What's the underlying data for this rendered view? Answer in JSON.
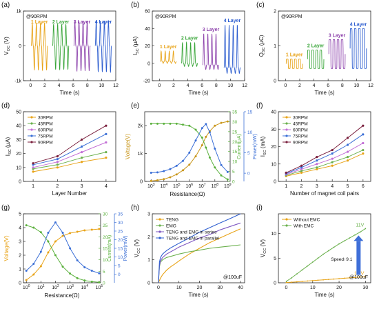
{
  "figure": {
    "panels": [
      {
        "letter": "(a)"
      },
      {
        "letter": "(b)"
      },
      {
        "letter": "(c)"
      },
      {
        "letter": "(d)"
      },
      {
        "letter": "(e)"
      },
      {
        "letter": "(f)"
      },
      {
        "letter": "(g)"
      },
      {
        "letter": "(h)"
      },
      {
        "letter": "(i)"
      }
    ]
  },
  "chart_data": [
    {
      "id": "a",
      "type": "line",
      "annotation": "@90RPM",
      "xlabel": "Time (s)",
      "ylabel": "V_OC (V)",
      "xlim": [
        -1,
        12
      ],
      "ylim": [
        -1000,
        1000
      ],
      "x_ticks": [
        0,
        2,
        4,
        6,
        8,
        10,
        12
      ],
      "y_ticks": [
        {
          "v": -1000,
          "t": "-1k"
        },
        {
          "v": 0,
          "t": "0"
        },
        {
          "v": 1000,
          "t": "1k"
        }
      ],
      "series": [
        {
          "name": "1 Layer",
          "color": "#e8a317",
          "t_start": 0.1,
          "t_end": 2.4,
          "peaks": 4,
          "max": 650,
          "min": -700
        },
        {
          "name": "2 Layer",
          "color": "#3aa63a",
          "t_start": 3.1,
          "t_end": 5.4,
          "peaks": 4,
          "max": 620,
          "min": -680
        },
        {
          "name": "3 Layer",
          "color": "#8e44ad",
          "t_start": 6.1,
          "t_end": 8.4,
          "peaks": 4,
          "max": 700,
          "min": -720
        },
        {
          "name": "4 Layer",
          "color": "#2f5fd0",
          "t_start": 9.1,
          "t_end": 11.4,
          "peaks": 4,
          "max": 720,
          "min": -750
        }
      ]
    },
    {
      "id": "b",
      "type": "line",
      "annotation": "@90RPM",
      "xlabel": "Time (s)",
      "ylabel": "I_SC (μA)",
      "xlim": [
        -1,
        12
      ],
      "ylim": [
        -20,
        60
      ],
      "x_ticks": [
        0,
        2,
        4,
        6,
        8,
        10,
        12
      ],
      "y_ticks": [
        -20,
        0,
        20,
        40,
        60
      ],
      "series": [
        {
          "name": "1 Layer",
          "color": "#e8a317",
          "t_start": 0.1,
          "t_end": 2.4,
          "peaks": 4,
          "max": 14,
          "min": 2
        },
        {
          "name": "2 Layer",
          "color": "#3aa63a",
          "t_start": 3.1,
          "t_end": 5.4,
          "peaks": 4,
          "max": 24,
          "min": 0
        },
        {
          "name": "3 Layer",
          "color": "#8e44ad",
          "t_start": 6.1,
          "t_end": 8.4,
          "peaks": 4,
          "max": 34,
          "min": -2
        },
        {
          "name": "4 Layer",
          "color": "#2f5fd0",
          "t_start": 9.1,
          "t_end": 11.4,
          "peaks": 4,
          "max": 44,
          "min": -5
        }
      ]
    },
    {
      "id": "c",
      "type": "line",
      "annotation": "@90RPM",
      "xlabel": "Time (s)",
      "ylabel": "Q_SC (μC)",
      "xlim": [
        -1,
        12
      ],
      "ylim": [
        0,
        2
      ],
      "x_ticks": [
        0,
        2,
        4,
        6,
        8,
        10,
        12
      ],
      "y_ticks": [
        0,
        1,
        2
      ],
      "series": [
        {
          "name": "1 Layer",
          "color": "#e8a317",
          "t_start": 0.1,
          "t_end": 2.4,
          "peaks": 4,
          "max": 0.62,
          "min": 0.35
        },
        {
          "name": "2 Layer",
          "color": "#3aa63a",
          "t_start": 3.1,
          "t_end": 5.4,
          "peaks": 4,
          "max": 0.88,
          "min": 0.35
        },
        {
          "name": "3 Layer",
          "color": "#8e44ad",
          "t_start": 6.1,
          "t_end": 8.4,
          "peaks": 4,
          "max": 1.18,
          "min": 0.35
        },
        {
          "name": "4 Layer",
          "color": "#2f5fd0",
          "t_start": 9.1,
          "t_end": 11.4,
          "peaks": 4,
          "max": 1.5,
          "min": 0.35
        }
      ]
    },
    {
      "id": "d",
      "type": "line",
      "xlabel": "Layer Number",
      "ylabel": "I_SC (μA)",
      "xlim": [
        0.6,
        4.4
      ],
      "ylim": [
        0,
        50
      ],
      "x_ticks": [
        1,
        2,
        3,
        4
      ],
      "y_ticks": [
        0,
        10,
        20,
        30,
        40,
        50
      ],
      "legend_position": "top-left",
      "x": [
        1,
        2,
        3,
        4
      ],
      "series": [
        {
          "name": "30RPM",
          "color": "#e8a317",
          "values": [
            7,
            10,
            14,
            17
          ]
        },
        {
          "name": "45RPM",
          "color": "#6ab04c",
          "values": [
            9,
            12,
            17,
            21
          ]
        },
        {
          "name": "60RPM",
          "color": "#c36fd6",
          "values": [
            10,
            14,
            21,
            28
          ]
        },
        {
          "name": "75RPM",
          "color": "#3b6fd6",
          "values": [
            12,
            16,
            25,
            34
          ]
        },
        {
          "name": "90RPM",
          "color": "#7a1f3d",
          "values": [
            13,
            18,
            30,
            40
          ]
        }
      ]
    },
    {
      "id": "e",
      "type": "line",
      "xlabel": "Resistance(Ω)",
      "ylabel": "Voltage(V)",
      "ylabel_right": "Current(μA)",
      "ylabel_far_right": "Power(mW)",
      "xlim_log10": [
        2.5,
        9.2
      ],
      "ylim": [
        0,
        2500
      ],
      "x_ticks_log10": [
        3,
        4,
        5,
        6,
        7,
        8,
        9
      ],
      "y_ticks": [
        {
          "v": 0,
          "t": "0"
        },
        {
          "v": 1000,
          "t": "1k"
        },
        {
          "v": 2000,
          "t": "2k"
        }
      ],
      "y2lim": [
        0,
        35
      ],
      "y2_ticks": [
        0,
        5,
        10,
        15,
        20,
        25,
        30,
        35
      ],
      "y3lim": [
        -2,
        15
      ],
      "y3_ticks": [
        0,
        5,
        10,
        15
      ],
      "x_log10": [
        3,
        3.5,
        4,
        4.5,
        5,
        5.5,
        6,
        6.5,
        7,
        7.3,
        7.6,
        8,
        8.5,
        9
      ],
      "voltage": [
        15,
        40,
        80,
        150,
        250,
        400,
        600,
        900,
        1300,
        1600,
        1800,
        2000,
        2100,
        2150
      ],
      "current": [
        29,
        29,
        29,
        29,
        29,
        28.5,
        28,
        26,
        22,
        17,
        12,
        7,
        3,
        1
      ],
      "power": [
        0.1,
        0.2,
        0.5,
        1,
        1.8,
        3,
        5,
        8,
        11,
        12,
        10,
        6,
        2,
        0.3
      ],
      "colors": {
        "voltage": "#c9961a",
        "current": "#5ab03c",
        "power": "#3b6fd6"
      }
    },
    {
      "id": "f",
      "type": "line",
      "xlabel": "Number of magnet coil pairs",
      "ylabel": "I_SC (mA)",
      "xlim": [
        0.5,
        6.5
      ],
      "ylim": [
        0,
        40
      ],
      "x_ticks": [
        1,
        2,
        3,
        4,
        5,
        6
      ],
      "y_ticks": [
        0,
        10,
        20,
        30,
        40
      ],
      "legend_position": "top-left",
      "x": [
        1,
        2,
        3,
        4,
        5,
        6
      ],
      "series": [
        {
          "name": "30RPM",
          "color": "#e8a317",
          "values": [
            3,
            5,
            7,
            9,
            12,
            16
          ]
        },
        {
          "name": "45RPM",
          "color": "#6ab04c",
          "values": [
            3.5,
            6,
            8,
            11,
            14,
            18
          ]
        },
        {
          "name": "60RPM",
          "color": "#c36fd6",
          "values": [
            4,
            7,
            10,
            13,
            17,
            22
          ]
        },
        {
          "name": "75RPM",
          "color": "#3b6fd6",
          "values": [
            4.5,
            8,
            12,
            16,
            21,
            27
          ]
        },
        {
          "name": "90RPM",
          "color": "#7a1f3d",
          "values": [
            5,
            9,
            14,
            18,
            25,
            32
          ]
        }
      ]
    },
    {
      "id": "g",
      "type": "line",
      "xlabel": "Resistance(Ω)",
      "ylabel": "Voltage(V)",
      "ylabel_right": "Current(mA)",
      "ylabel_far_right": "Power(mW)",
      "xlim_log10": [
        -0.2,
        5.1
      ],
      "ylim": [
        0,
        5
      ],
      "x_ticks_log10": [
        0,
        1,
        2,
        3,
        4,
        5
      ],
      "y_ticks": [
        0,
        1,
        2,
        3,
        4,
        5
      ],
      "y2lim": [
        0,
        30
      ],
      "y2_ticks": [
        0,
        5,
        10,
        15,
        20,
        25,
        30
      ],
      "y3lim": [
        -5,
        35
      ],
      "y3_ticks": [
        0,
        5,
        10,
        15,
        20,
        25,
        30,
        35
      ],
      "x_log10": [
        0,
        0.5,
        1,
        1.5,
        2,
        2.5,
        3,
        3.5,
        4,
        4.5,
        5
      ],
      "voltage": [
        0.2,
        0.6,
        1.2,
        2.2,
        3.0,
        3.4,
        3.6,
        3.7,
        3.8,
        3.85,
        3.9
      ],
      "current": [
        25,
        24,
        22,
        18,
        12,
        7,
        4,
        2,
        1,
        0.5,
        0.2
      ],
      "power": [
        2,
        6,
        13,
        24,
        30,
        24,
        15,
        8,
        4,
        2,
        0.5
      ],
      "colors": {
        "voltage": "#e8a317",
        "current": "#5ab03c",
        "power": "#3b6fd6"
      }
    },
    {
      "id": "h",
      "type": "line",
      "annotation": "@100uF",
      "xlabel": "Time (s)",
      "ylabel": "V_CC (V)",
      "xlim": [
        -3,
        42
      ],
      "ylim": [
        0,
        3
      ],
      "x_ticks": [
        0,
        10,
        20,
        30,
        40
      ],
      "y_ticks": [
        0,
        1,
        2,
        3
      ],
      "legend_position": "top-left",
      "x": [
        0,
        0.5,
        1,
        2,
        4,
        6,
        8,
        10,
        15,
        20,
        25,
        30,
        35,
        40
      ],
      "series": [
        {
          "name": "TENG",
          "color": "#e8a317",
          "values": [
            0.0,
            0.1,
            0.2,
            0.35,
            0.55,
            0.7,
            0.82,
            0.95,
            1.25,
            1.5,
            1.75,
            1.95,
            2.15,
            2.35
          ]
        },
        {
          "name": "EMG",
          "color": "#6ab04c",
          "values": [
            0.0,
            0.7,
            0.9,
            1.0,
            1.1,
            1.15,
            1.2,
            1.25,
            1.35,
            1.42,
            1.5,
            1.55,
            1.6,
            1.65
          ]
        },
        {
          "name": "TENG and EMG in series",
          "color": "#7e57c2",
          "values": [
            0.0,
            0.75,
            0.95,
            1.1,
            1.25,
            1.35,
            1.45,
            1.55,
            1.75,
            1.95,
            2.1,
            2.3,
            2.45,
            2.6
          ]
        },
        {
          "name": "TENG and EMG in parallel",
          "color": "#2f5fd0",
          "values": [
            0.0,
            0.9,
            1.1,
            1.25,
            1.4,
            1.52,
            1.62,
            1.72,
            1.95,
            2.2,
            2.4,
            2.6,
            2.8,
            3.0
          ]
        }
      ]
    },
    {
      "id": "i",
      "type": "line",
      "annotation": "@100uF",
      "xlabel": "Time (s)",
      "ylabel": "V_CC (V)",
      "xlim": [
        -3,
        32
      ],
      "ylim": [
        0,
        14
      ],
      "x_ticks": [
        0,
        10,
        20,
        30
      ],
      "y_ticks": [
        0,
        5,
        10
      ],
      "legend_position": "top-left",
      "x": [
        0,
        2,
        4,
        6,
        8,
        10,
        12,
        14,
        16,
        18,
        20,
        22,
        24,
        26,
        28,
        30
      ],
      "series": [
        {
          "name": "Without EMC",
          "color": "#e8a317",
          "values": [
            0.05,
            0.12,
            0.2,
            0.28,
            0.36,
            0.44,
            0.52,
            0.6,
            0.68,
            0.76,
            0.84,
            0.92,
            1.0,
            1.08,
            1.15,
            1.2
          ]
        },
        {
          "name": "With EMC",
          "color": "#6ab04c",
          "values": [
            0.3,
            1.0,
            1.8,
            2.6,
            3.4,
            4.2,
            5.0,
            5.8,
            6.5,
            7.2,
            7.9,
            8.5,
            9.1,
            9.7,
            10.3,
            11.0
          ]
        }
      ],
      "end_labels": {
        "with": "11V",
        "without": "1.2V"
      },
      "speed_label": "Speed↑9.1",
      "arrow_color": "#3f6fd8"
    }
  ]
}
